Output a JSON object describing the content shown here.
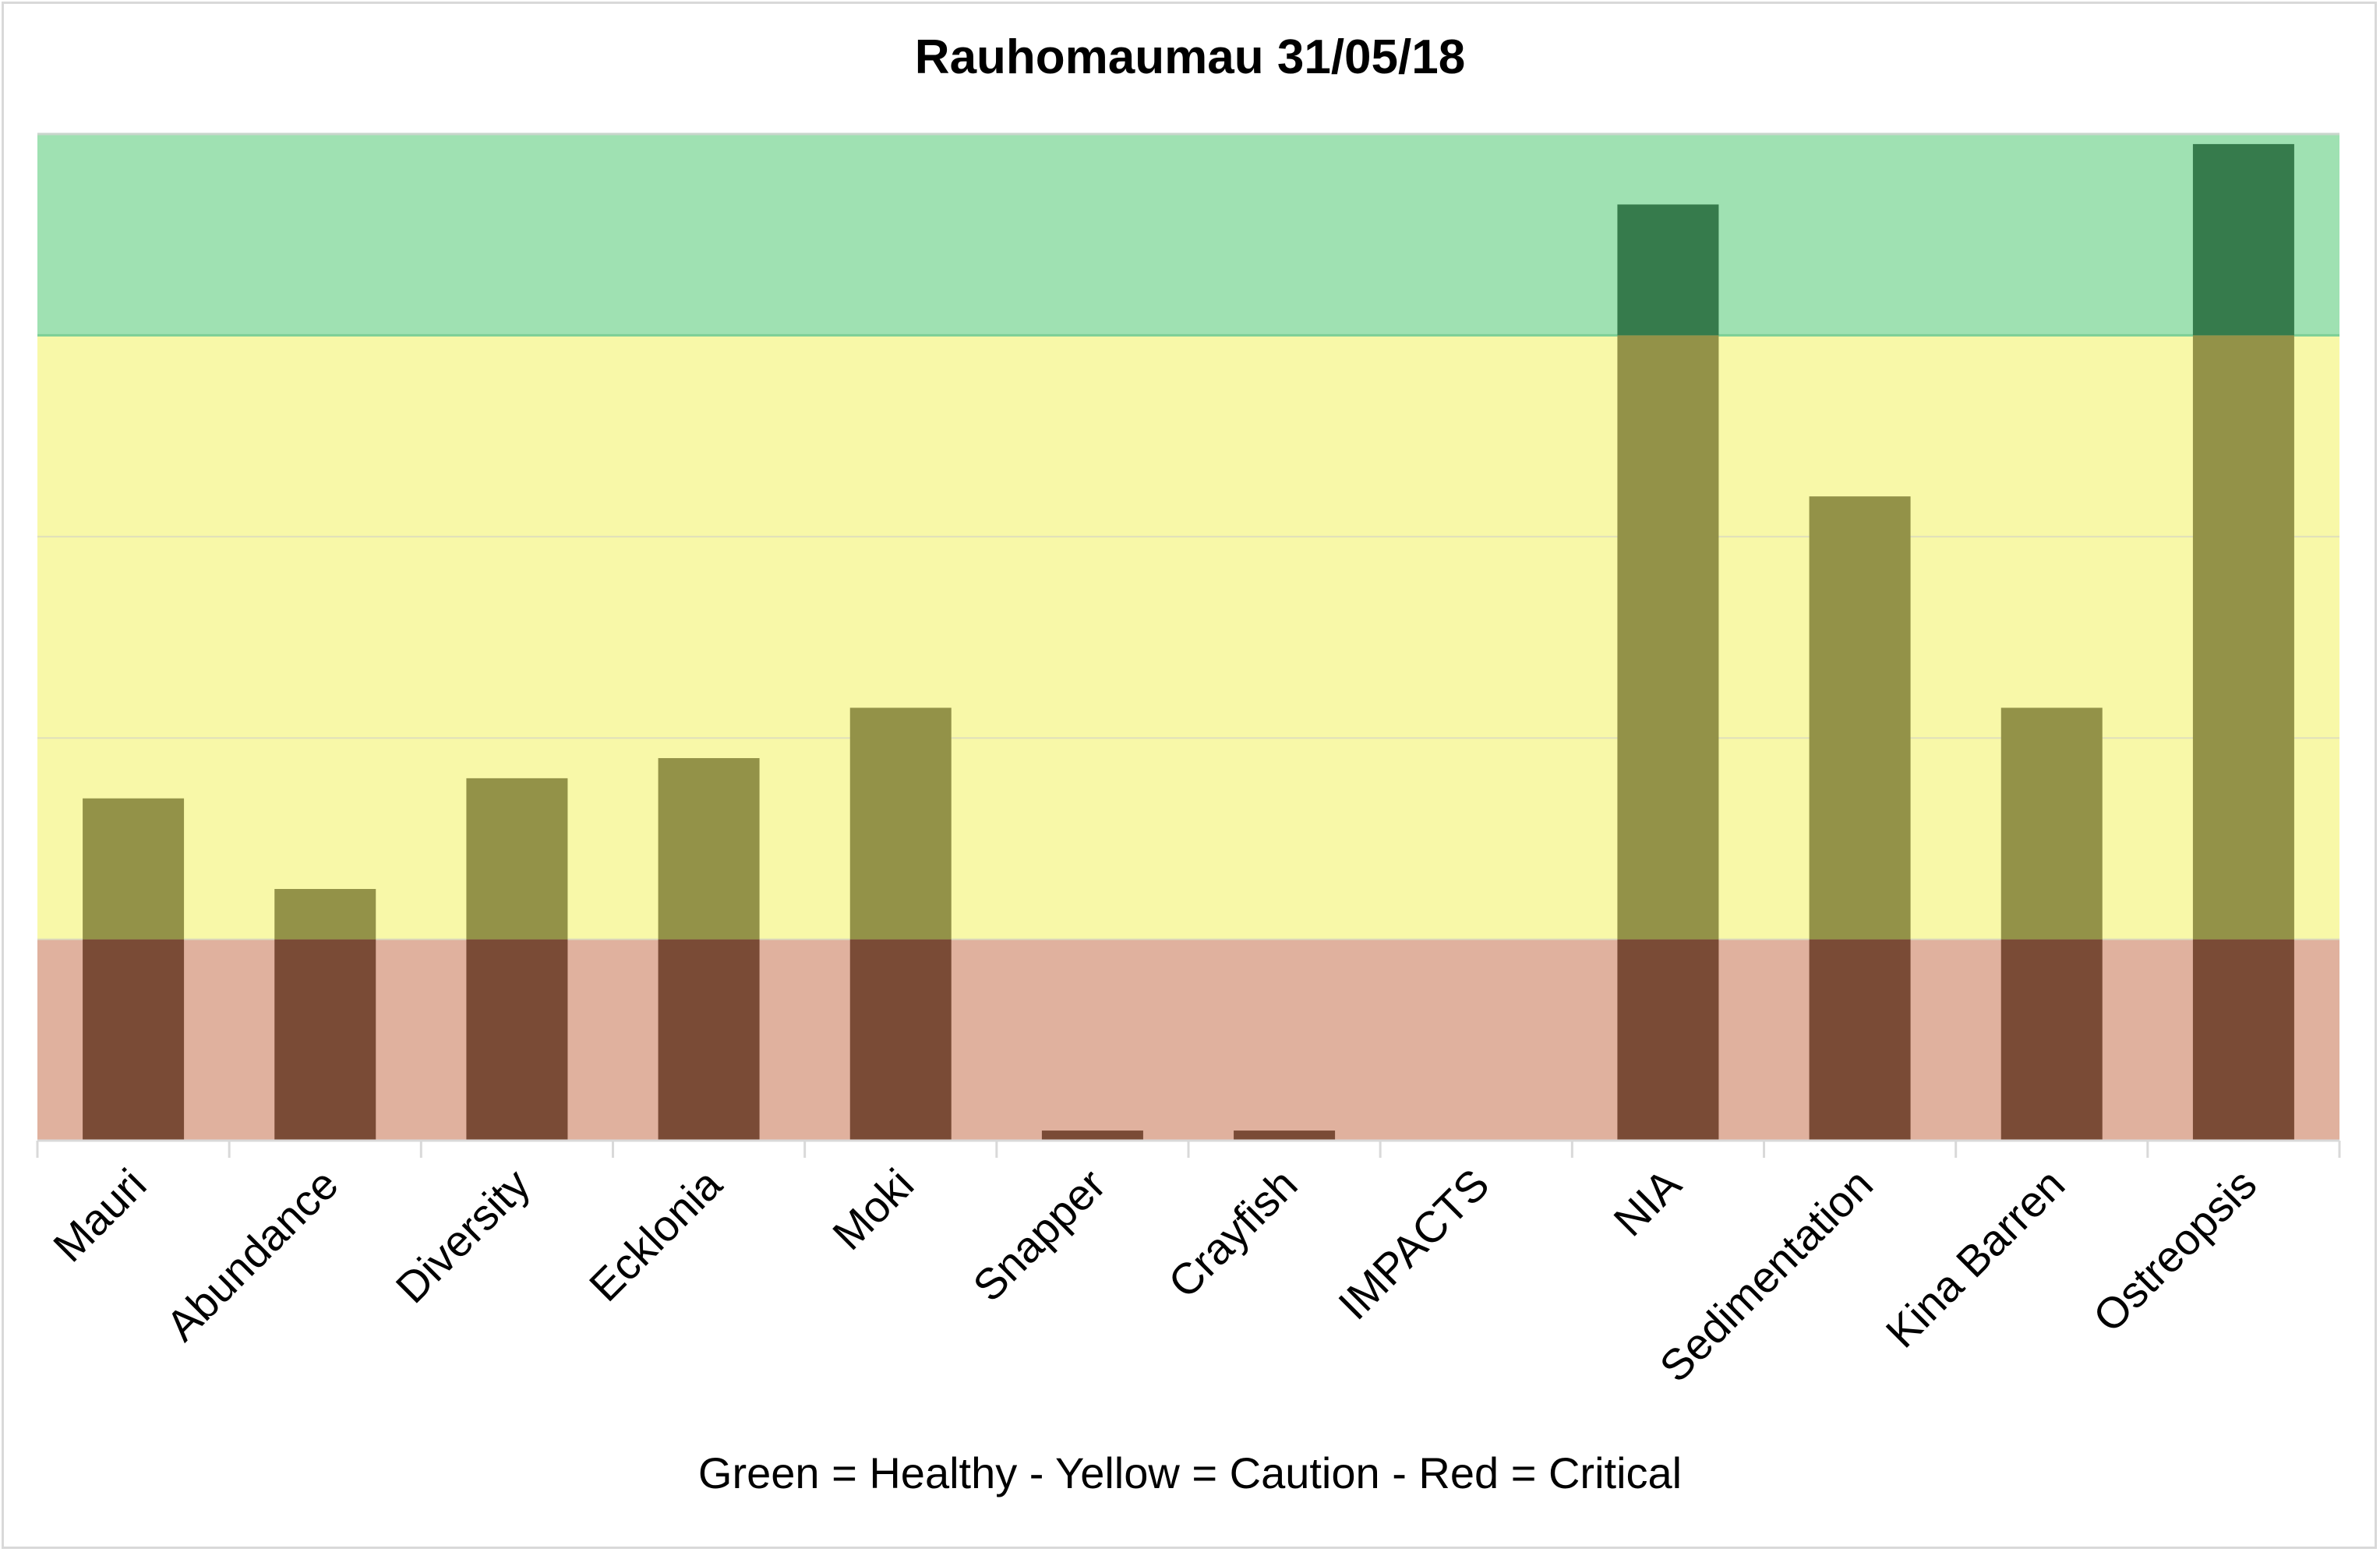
{
  "title": "Rauhomaumau 31/05/18",
  "caption": "Green = Healthy - Yellow = Caution - Red = Critical",
  "chart_data": {
    "type": "bar",
    "title": "Rauhomaumau 31/05/18",
    "xlabel": "",
    "ylabel": "",
    "categories": [
      "Mauri",
      "Abundance",
      "Diversity",
      "Ecklonia",
      "Moki",
      "Snapper",
      "Crayfish",
      "IMPACTS",
      "NIA",
      "Sedimentation",
      "Kina Barren",
      "Ostreopsis"
    ],
    "values": [
      1.7,
      1.25,
      1.8,
      1.9,
      2.15,
      0.05,
      0.05,
      0,
      4.65,
      3.2,
      2.15,
      4.95
    ],
    "ylim": [
      0,
      5
    ],
    "grid": true,
    "bands": [
      {
        "label": "Critical",
        "from": 0,
        "to": 1,
        "color": "#e0b19e"
      },
      {
        "label": "Caution",
        "from": 1,
        "to": 4,
        "color": "#f8f8a8"
      },
      {
        "label": "Healthy",
        "from": 4,
        "to": 5,
        "color": "#9fe1b2"
      }
    ],
    "bar_colors": {
      "Critical": "#7a4b36",
      "Caution": "#939248",
      "Healthy": "#367b4c"
    }
  }
}
